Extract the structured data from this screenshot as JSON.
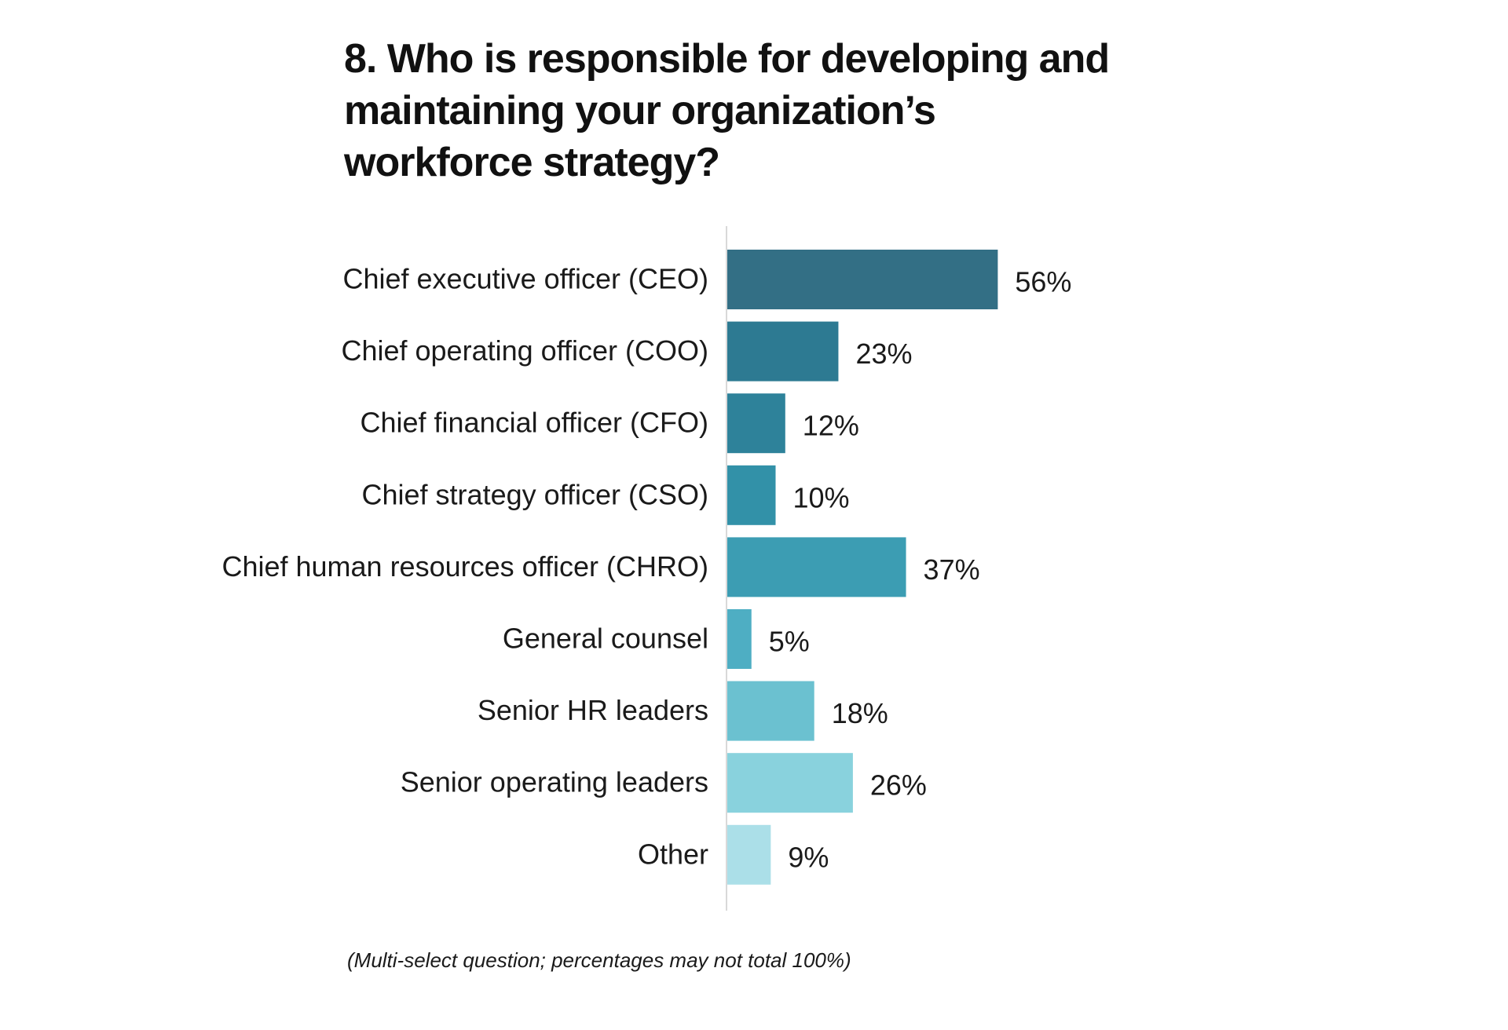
{
  "chart_data": {
    "type": "bar",
    "orientation": "horizontal",
    "title": "8. Who is responsible for developing and maintaining your organization’s workforce strategy?",
    "note": "(Multi-select question; percentages may not total 100%)",
    "categories": [
      "Chief executive officer (CEO)",
      "Chief operating officer (COO)",
      "Chief financial officer (CFO)",
      "Chief strategy officer (CSO)",
      "Chief human resources officer (CHRO)",
      "General counsel",
      "Senior HR leaders",
      "Senior operating leaders",
      "Other"
    ],
    "values": [
      56,
      23,
      12,
      10,
      37,
      5,
      18,
      26,
      9
    ],
    "value_labels": [
      "56%",
      "23%",
      "12%",
      "10%",
      "37%",
      "5%",
      "18%",
      "26%",
      "9%"
    ],
    "unit": "%",
    "xlim": [
      0,
      100
    ],
    "grid": false,
    "legend": "none",
    "colors": [
      "#336f85",
      "#2d7a92",
      "#2e829a",
      "#3291a8",
      "#3c9db3",
      "#4eaec3",
      "#6bc1d0",
      "#89d2dd",
      "#abdfe8"
    ]
  }
}
